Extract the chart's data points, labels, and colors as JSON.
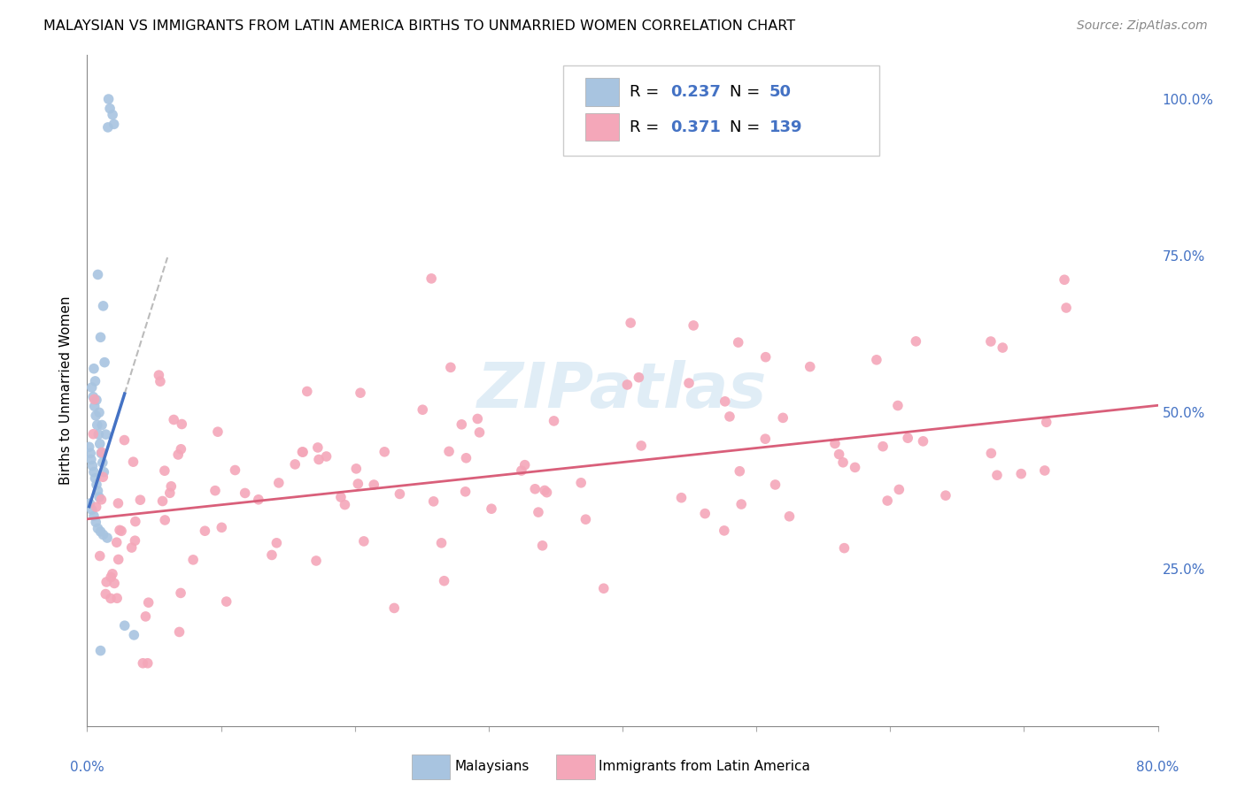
{
  "title": "MALAYSIAN VS IMMIGRANTS FROM LATIN AMERICA BIRTHS TO UNMARRIED WOMEN CORRELATION CHART",
  "source": "Source: ZipAtlas.com",
  "ylabel": "Births to Unmarried Women",
  "xmin": 0.0,
  "xmax": 80.0,
  "ymin": 0.0,
  "ymax": 107.0,
  "blue_color": "#a8c4e0",
  "blue_line_color": "#4472c4",
  "pink_color": "#f4a7b9",
  "pink_line_color": "#d95f7a",
  "R_blue": 0.237,
  "N_blue": 50,
  "R_pink": 0.371,
  "N_pink": 139,
  "watermark": "ZIPatlas",
  "accent_color": "#4472c4"
}
